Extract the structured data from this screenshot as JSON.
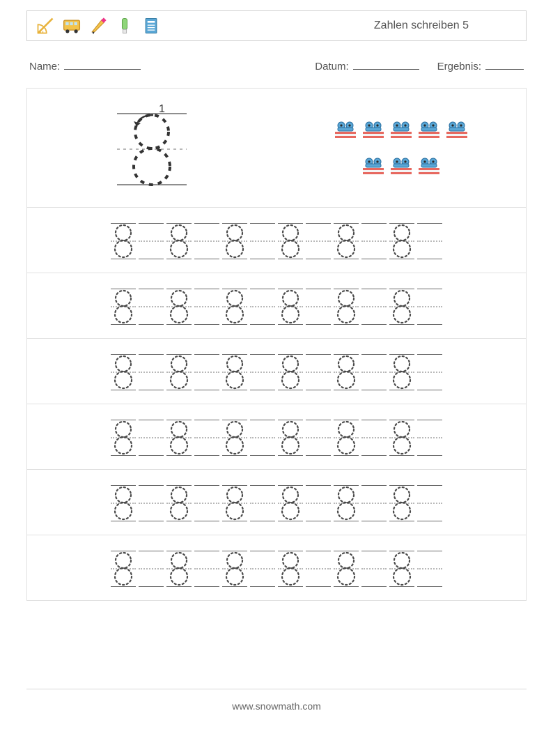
{
  "header": {
    "title": "Zahlen schreiben 5",
    "icons": [
      "ruler-icon",
      "bus-icon",
      "pencil-icon",
      "marker-icon",
      "notebook-icon"
    ]
  },
  "meta": {
    "name_label": "Name:",
    "date_label": "Datum:",
    "result_label": "Ergebnis:"
  },
  "digit": {
    "value": 8,
    "stroke_number": "1",
    "dot_color": "#4a4a4a",
    "guide_color": "#6a6a6a",
    "mid_guide_color": "#b8b8b8"
  },
  "objects": {
    "count": 8,
    "row1": 5,
    "row2": 3,
    "car_colors": {
      "body": "#5aa7d6",
      "wheels": "#2a2a2a"
    },
    "base_colors": [
      "#e7685f",
      "#f4f4f4",
      "#e7685f"
    ]
  },
  "practice": {
    "rows": 6,
    "cells_per_row": 12,
    "pattern": [
      "digit",
      "blank"
    ]
  },
  "footer": {
    "text": "www.snowmath.com"
  },
  "colors": {
    "border": "#e0e0e0",
    "topbar_border": "#cfcfcf",
    "text": "#555555",
    "background": "#ffffff"
  }
}
